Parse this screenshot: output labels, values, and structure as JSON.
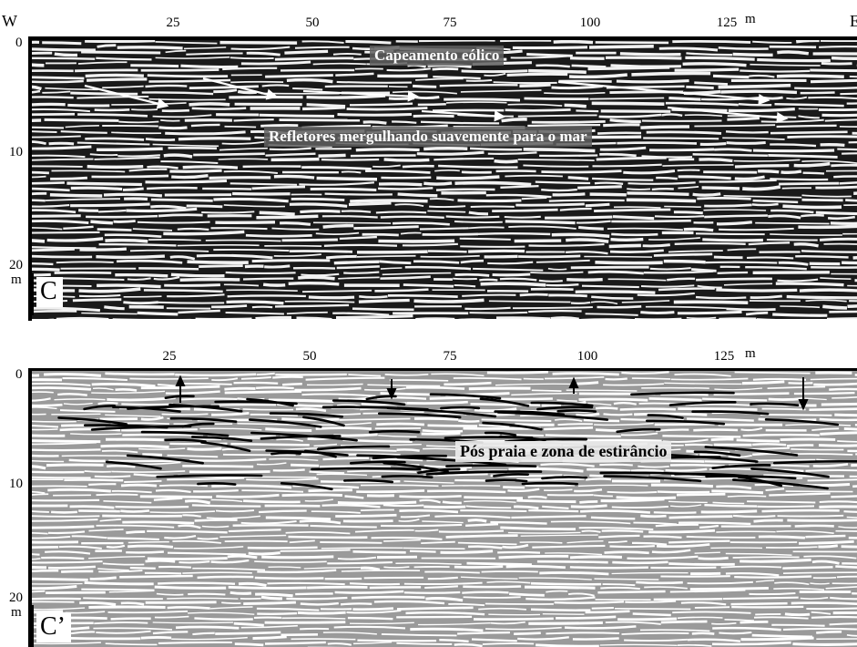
{
  "figure": {
    "west_label": "W",
    "east_label": "E",
    "distance_ticks": [
      "25",
      "50",
      "75",
      "100",
      "125"
    ],
    "distance_unit": "m",
    "depth_ticks": [
      "0",
      "10",
      "20"
    ],
    "depth_unit": "m"
  },
  "panel_c": {
    "label": "C",
    "caption_top": "Capeamento eólico",
    "caption_mid": "Refletores mergulhando suavemente para o mar",
    "colors": {
      "background": "#1a1a1a",
      "reflector": "#f2f2f2",
      "arrow": "#ffffff"
    }
  },
  "panel_c2": {
    "label": "C’",
    "caption": "Pós praia e zona de estirâncio",
    "colors": {
      "background": "#9a9a9a",
      "reflector": "#ffffff",
      "interpretation": "#000000"
    }
  }
}
